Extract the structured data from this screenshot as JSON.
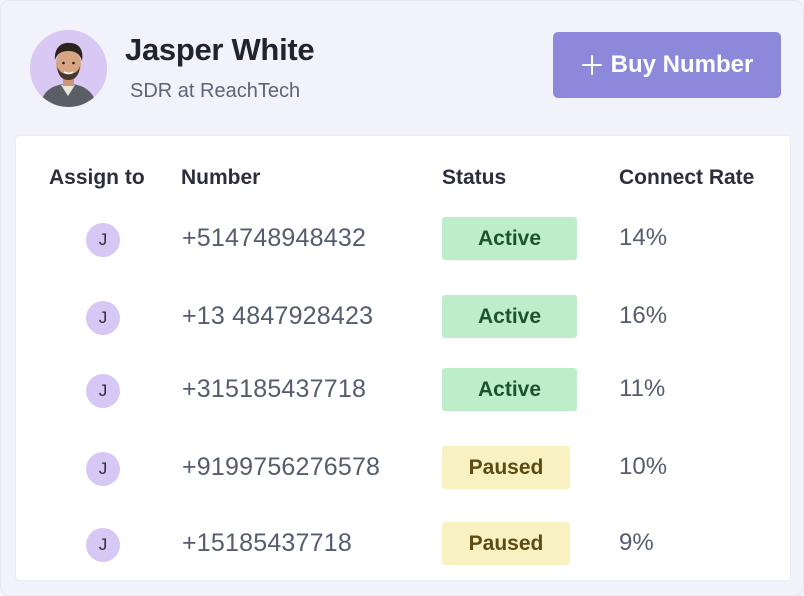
{
  "profile": {
    "name": "Jasper White",
    "role": "SDR at ReachTech"
  },
  "actions": {
    "buy_number_label": "Buy Number",
    "buy_number_icon": "plus-icon"
  },
  "table": {
    "headers": {
      "assign_to": "Assign to",
      "number": "Number",
      "status": "Status",
      "connect_rate": "Connect Rate"
    },
    "rows": [
      {
        "assignee_initial": "J",
        "number": "+514748948432",
        "status": "Active",
        "connect_rate": "14%"
      },
      {
        "assignee_initial": "J",
        "number": "+13 4847928423",
        "status": "Active",
        "connect_rate": "16%"
      },
      {
        "assignee_initial": "J",
        "number": "+315185437718",
        "status": "Active",
        "connect_rate": "11%"
      },
      {
        "assignee_initial": "J",
        "number": "+9199756276578",
        "status": "Paused",
        "connect_rate": "10%"
      },
      {
        "assignee_initial": "J",
        "number": "+15185437718",
        "status": "Paused",
        "connect_rate": "9%"
      }
    ]
  },
  "colors": {
    "accent": "#8c89db",
    "active_bg": "#bdeec9",
    "paused_bg": "#f8f1c1"
  }
}
